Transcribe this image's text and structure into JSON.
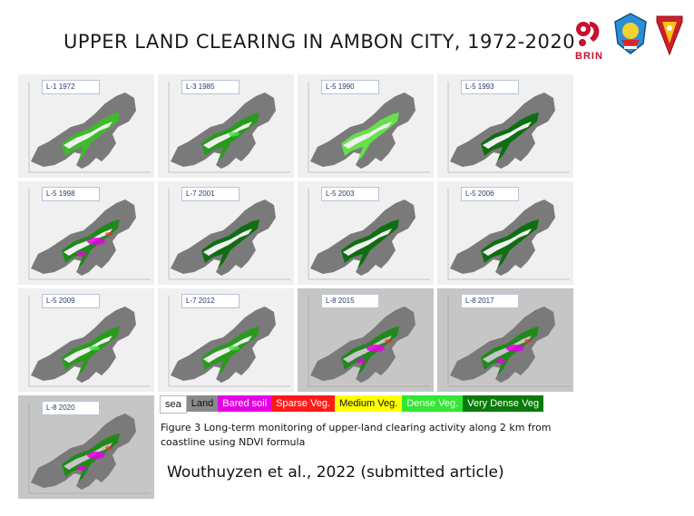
{
  "slide": {
    "title": "UPPER LAND CLEARING IN AMBON CITY, 1972-2020",
    "logo_text": "BRIN"
  },
  "panels": [
    {
      "label": "L-1 1972",
      "style": "light",
      "veg": "green-light"
    },
    {
      "label": "L-3 1985",
      "style": "light",
      "veg": "green-mixed"
    },
    {
      "label": "L-5 1990",
      "style": "light",
      "veg": "green-bright"
    },
    {
      "label": "L-5 1993",
      "style": "light",
      "veg": "green-dark"
    },
    {
      "label": "L-5 1998",
      "style": "light",
      "veg": "green-pink"
    },
    {
      "label": "L-7 2001",
      "style": "light",
      "veg": "green-dark"
    },
    {
      "label": "L-5 2003",
      "style": "light",
      "veg": "green-dark"
    },
    {
      "label": "L-5 2006",
      "style": "light",
      "veg": "green-dark"
    },
    {
      "label": "L-5 2009",
      "style": "light",
      "veg": "green-mixed"
    },
    {
      "label": "L-7 2012",
      "style": "light",
      "veg": "green-mixed"
    },
    {
      "label": "L-8 2015",
      "style": "dark",
      "veg": "green-pink"
    },
    {
      "label": "L-8 2017",
      "style": "dark",
      "veg": "green-pink"
    },
    {
      "label": "L-8 2020",
      "style": "dark",
      "veg": "green-pink"
    }
  ],
  "legend": [
    {
      "label": "sea",
      "bg": "#ffffff",
      "fg": "#111111"
    },
    {
      "label": "Land",
      "bg": "#8a8a8a",
      "fg": "#111111"
    },
    {
      "label": "Bared soil",
      "bg": "#e600e6",
      "fg": "#ffffff"
    },
    {
      "label": "Sparse Veg.",
      "bg": "#ff1a1a",
      "fg": "#ffffff"
    },
    {
      "label": "Medium Veg.",
      "bg": "#ffff00",
      "fg": "#111111"
    },
    {
      "label": "Dense Veg.",
      "bg": "#33e633",
      "fg": "#ffffff"
    },
    {
      "label": "Very Dense Veg",
      "bg": "#0a7a0a",
      "fg": "#ffffff"
    }
  ],
  "caption": "Figure 3 Long-term monitoring of upper-land clearing activity along 2 km from coastline using NDVI formula",
  "citation": "Wouthuyzen et al., 2022 (submitted article)",
  "colors": {
    "land": "#7a7a7a",
    "very_dense": "#0a6e0a",
    "dense": "#3ce63c",
    "bare": "#e600e6",
    "sparse": "#ff2020",
    "title": "#1a1a1a"
  }
}
